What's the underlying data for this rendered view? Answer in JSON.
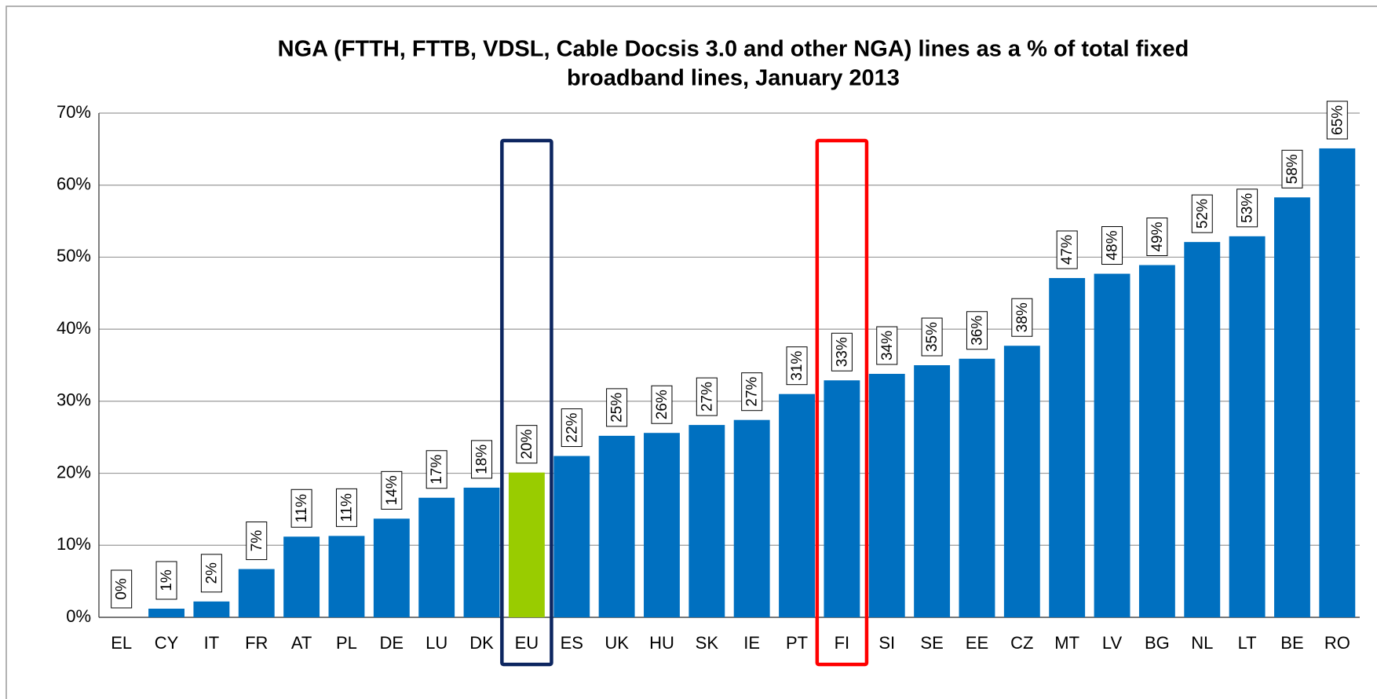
{
  "chart_data": {
    "type": "bar",
    "title": [
      "NGA (FTTH, FTTB, VDSL, Cable Docsis 3.0 and other NGA) lines as a %  of total fixed",
      "broadband lines, January 2013"
    ],
    "categories": [
      "EL",
      "CY",
      "IT",
      "FR",
      "AT",
      "PL",
      "DE",
      "LU",
      "DK",
      "EU",
      "ES",
      "UK",
      "HU",
      "SK",
      "IE",
      "PT",
      "FI",
      "SI",
      "SE",
      "EE",
      "CZ",
      "MT",
      "LV",
      "BG",
      "NL",
      "LT",
      "BE",
      "RO"
    ],
    "values": [
      0,
      1.2,
      2.2,
      6.7,
      11.2,
      11.3,
      13.7,
      16.6,
      18.0,
      20.1,
      22.4,
      25.2,
      25.6,
      26.7,
      27.4,
      31.0,
      32.9,
      33.8,
      35.0,
      35.9,
      37.7,
      47.1,
      47.7,
      48.9,
      52.1,
      52.9,
      58.3,
      65.1
    ],
    "value_labels": [
      "0%",
      "1%",
      "2%",
      "7%",
      "11%",
      "11%",
      "14%",
      "17%",
      "18%",
      "20%",
      "22%",
      "25%",
      "26%",
      "27%",
      "27%",
      "31%",
      "33%",
      "34%",
      "35%",
      "36%",
      "38%",
      "47%",
      "48%",
      "49%",
      "52%",
      "53%",
      "58%",
      "65%"
    ],
    "color": "#0070c0",
    "category_colors": {
      "EU": "#99cc00"
    },
    "highlights": {
      "EU": "#0d2660",
      "FI": "#ff0000"
    },
    "ylim": [
      0,
      70
    ],
    "yticks": [
      {
        "value": 0,
        "label": "0%"
      },
      {
        "value": 10,
        "label": "10%"
      },
      {
        "value": 20,
        "label": "20%"
      },
      {
        "value": 30,
        "label": "30%"
      },
      {
        "value": 40,
        "label": "40%"
      },
      {
        "value": 50,
        "label": "50%"
      },
      {
        "value": 60,
        "label": "60%"
      },
      {
        "value": 70,
        "label": "70%"
      }
    ],
    "grid": true
  }
}
